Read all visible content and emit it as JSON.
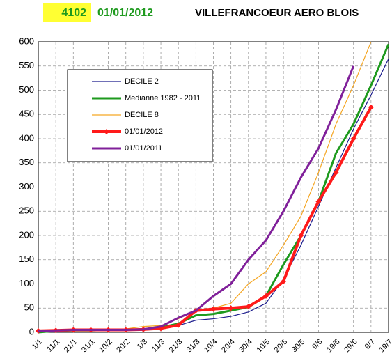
{
  "chart_data": {
    "type": "line",
    "header": {
      "code": "4102",
      "date": "01/01/2012",
      "station": "VILLEFRANCOEUR AERO BLOIS"
    },
    "categories": [
      "1/1",
      "11/1",
      "21/1",
      "31/1",
      "10/2",
      "20/2",
      "1/3",
      "11/3",
      "21/3",
      "31/3",
      "10/4",
      "20/4",
      "30/4",
      "10/5",
      "20/5",
      "30/5",
      "9/6",
      "19/6",
      "29/6",
      "9/7",
      "19/7"
    ],
    "series": [
      {
        "name": "DECILE 2",
        "color": "#1a1a8c",
        "values": [
          0,
          3,
          4,
          4,
          4,
          4,
          5,
          8,
          14,
          25,
          28,
          33,
          42,
          60,
          110,
          180,
          260,
          340,
          420,
          490,
          565
        ]
      },
      {
        "name": "Medianne 1982 - 2011",
        "color": "#1e9a1e",
        "values": [
          0,
          3,
          4,
          4,
          5,
          5,
          6,
          10,
          18,
          35,
          38,
          45,
          52,
          75,
          140,
          200,
          270,
          370,
          430,
          510,
          595
        ]
      },
      {
        "name": "DECILE 8",
        "color": "#f5a623",
        "values": [
          1,
          4,
          5,
          5,
          6,
          7,
          12,
          14,
          28,
          45,
          50,
          60,
          100,
          125,
          180,
          240,
          330,
          430,
          510,
          600,
          null
        ]
      },
      {
        "name": "01/01/2012",
        "color": "#ff1a1a",
        "values": [
          3,
          4,
          5,
          5,
          5,
          5,
          6,
          8,
          15,
          45,
          48,
          50,
          53,
          75,
          105,
          200,
          270,
          330,
          400,
          465,
          null
        ]
      },
      {
        "name": "01/01/2011",
        "color": "#80209a",
        "values": [
          2,
          4,
          5,
          5,
          5,
          5,
          6,
          12,
          30,
          45,
          75,
          100,
          150,
          190,
          250,
          320,
          380,
          460,
          550,
          null,
          null
        ]
      }
    ],
    "ylim": [
      0,
      600
    ],
    "yticks": [
      0,
      50,
      100,
      150,
      200,
      250,
      300,
      350,
      400,
      450,
      500,
      550,
      600
    ],
    "grid": true
  }
}
